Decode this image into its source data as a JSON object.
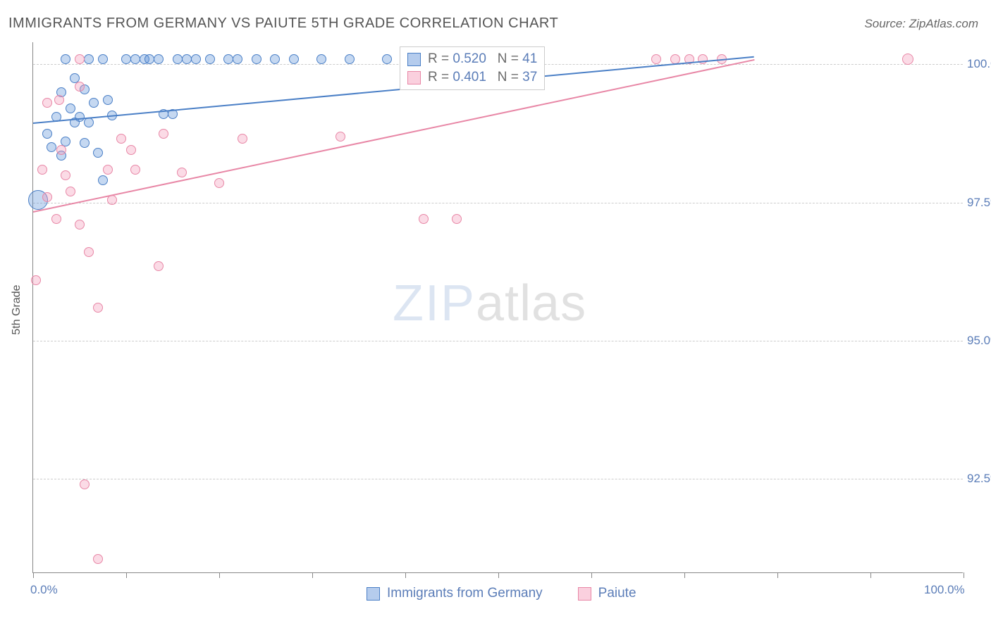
{
  "title": "IMMIGRANTS FROM GERMANY VS PAIUTE 5TH GRADE CORRELATION CHART",
  "source": "Source: ZipAtlas.com",
  "ylabel": "5th Grade",
  "watermark": {
    "part1": "ZIP",
    "part2": "atlas"
  },
  "chart": {
    "type": "scatter",
    "background_color": "#ffffff",
    "grid_color": "#cccccc",
    "axis_color": "#888888",
    "text_color": "#555555",
    "tick_label_color": "#5b7db8",
    "title_fontsize": 20,
    "tick_fontsize": 17,
    "ylabel_fontsize": 16,
    "legend_fontsize": 19,
    "xlim": [
      0,
      100
    ],
    "ylim": [
      90.8,
      100.4
    ],
    "y_gridlines": [
      92.5,
      95.0,
      97.5,
      100.0
    ],
    "y_tick_labels": [
      "92.5%",
      "95.0%",
      "97.5%",
      "100.0%"
    ],
    "x_tick_positions": [
      0,
      10,
      20,
      30,
      40,
      50,
      60,
      70,
      80,
      90,
      100
    ],
    "x_tick_labels": {
      "0": "0.0%",
      "100": "100.0%"
    },
    "point_border_width": 1.5,
    "point_fill_opacity": 0.35
  },
  "series": [
    {
      "id": "germany",
      "label": "Immigrants from Germany",
      "color": "#5a8fd6",
      "border_color": "#4a7fc6",
      "R": "0.520",
      "N": "41",
      "trend": {
        "x1": 0,
        "y1": 98.95,
        "x2": 77.5,
        "y2": 100.15
      },
      "points": [
        {
          "x": 0.5,
          "y": 97.55,
          "r": 14
        },
        {
          "x": 1.5,
          "y": 98.75,
          "r": 7
        },
        {
          "x": 2.0,
          "y": 98.5,
          "r": 7
        },
        {
          "x": 2.5,
          "y": 99.05,
          "r": 7
        },
        {
          "x": 3.0,
          "y": 98.35,
          "r": 7
        },
        {
          "x": 3.5,
          "y": 98.6,
          "r": 7
        },
        {
          "x": 3.5,
          "y": 100.1,
          "r": 7
        },
        {
          "x": 4.0,
          "y": 99.2,
          "r": 7
        },
        {
          "x": 4.5,
          "y": 98.95,
          "r": 7
        },
        {
          "x": 5.0,
          "y": 99.05,
          "r": 7
        },
        {
          "x": 5.5,
          "y": 98.58,
          "r": 7
        },
        {
          "x": 6.0,
          "y": 98.95,
          "r": 7
        },
        {
          "x": 6.5,
          "y": 99.3,
          "r": 7
        },
        {
          "x": 7.0,
          "y": 98.4,
          "r": 7
        },
        {
          "x": 7.5,
          "y": 100.1,
          "r": 7
        },
        {
          "x": 8.0,
          "y": 99.35,
          "r": 7
        },
        {
          "x": 8.5,
          "y": 99.07,
          "r": 7
        },
        {
          "x": 7.5,
          "y": 97.9,
          "r": 7
        },
        {
          "x": 10.0,
          "y": 100.1,
          "r": 7
        },
        {
          "x": 11.0,
          "y": 100.1,
          "r": 7
        },
        {
          "x": 12.0,
          "y": 100.1,
          "r": 7
        },
        {
          "x": 12.5,
          "y": 100.1,
          "r": 7
        },
        {
          "x": 13.5,
          "y": 100.1,
          "r": 7
        },
        {
          "x": 14.0,
          "y": 99.1,
          "r": 7
        },
        {
          "x": 15.0,
          "y": 99.1,
          "r": 7
        },
        {
          "x": 15.5,
          "y": 100.1,
          "r": 7
        },
        {
          "x": 16.5,
          "y": 100.1,
          "r": 7
        },
        {
          "x": 17.5,
          "y": 100.1,
          "r": 7
        },
        {
          "x": 19.0,
          "y": 100.1,
          "r": 7
        },
        {
          "x": 21.0,
          "y": 100.1,
          "r": 7
        },
        {
          "x": 22.0,
          "y": 100.1,
          "r": 7
        },
        {
          "x": 24.0,
          "y": 100.1,
          "r": 7
        },
        {
          "x": 26.0,
          "y": 100.1,
          "r": 7
        },
        {
          "x": 28.0,
          "y": 100.1,
          "r": 7
        },
        {
          "x": 31.0,
          "y": 100.1,
          "r": 7
        },
        {
          "x": 34.0,
          "y": 100.1,
          "r": 7
        },
        {
          "x": 38.0,
          "y": 100.1,
          "r": 7
        },
        {
          "x": 6.0,
          "y": 100.1,
          "r": 7
        },
        {
          "x": 3.0,
          "y": 99.5,
          "r": 7
        },
        {
          "x": 4.5,
          "y": 99.75,
          "r": 7
        },
        {
          "x": 5.5,
          "y": 99.55,
          "r": 7
        }
      ]
    },
    {
      "id": "paiute",
      "label": "Paiute",
      "color": "#f497b6",
      "border_color": "#e887a6",
      "R": "0.401",
      "N": "37",
      "trend": {
        "x1": 0,
        "y1": 97.35,
        "x2": 77.5,
        "y2": 100.1
      },
      "points": [
        {
          "x": 0.3,
          "y": 96.1,
          "r": 7
        },
        {
          "x": 1.0,
          "y": 98.1,
          "r": 7
        },
        {
          "x": 1.5,
          "y": 97.6,
          "r": 7
        },
        {
          "x": 1.5,
          "y": 99.3,
          "r": 7
        },
        {
          "x": 2.5,
          "y": 97.2,
          "r": 7
        },
        {
          "x": 2.8,
          "y": 99.35,
          "r": 7
        },
        {
          "x": 3.0,
          "y": 98.45,
          "r": 7
        },
        {
          "x": 4.0,
          "y": 97.7,
          "r": 7
        },
        {
          "x": 5.0,
          "y": 100.1,
          "r": 7
        },
        {
          "x": 5.0,
          "y": 97.1,
          "r": 7
        },
        {
          "x": 5.5,
          "y": 92.4,
          "r": 7
        },
        {
          "x": 6.0,
          "y": 96.6,
          "r": 7
        },
        {
          "x": 7.0,
          "y": 95.6,
          "r": 7
        },
        {
          "x": 7.0,
          "y": 91.05,
          "r": 7
        },
        {
          "x": 8.0,
          "y": 98.1,
          "r": 7
        },
        {
          "x": 8.5,
          "y": 97.55,
          "r": 7
        },
        {
          "x": 9.5,
          "y": 98.65,
          "r": 7
        },
        {
          "x": 10.5,
          "y": 98.45,
          "r": 7
        },
        {
          "x": 11.0,
          "y": 98.1,
          "r": 7
        },
        {
          "x": 13.5,
          "y": 96.35,
          "r": 7
        },
        {
          "x": 14.0,
          "y": 98.75,
          "r": 7
        },
        {
          "x": 16.0,
          "y": 98.05,
          "r": 7
        },
        {
          "x": 20.0,
          "y": 97.85,
          "r": 7
        },
        {
          "x": 22.5,
          "y": 98.65,
          "r": 7
        },
        {
          "x": 33.0,
          "y": 98.7,
          "r": 7
        },
        {
          "x": 40.0,
          "y": 100.1,
          "r": 7
        },
        {
          "x": 42.0,
          "y": 97.2,
          "r": 7
        },
        {
          "x": 44.5,
          "y": 100.1,
          "r": 7
        },
        {
          "x": 45.5,
          "y": 97.2,
          "r": 7
        },
        {
          "x": 67.0,
          "y": 100.1,
          "r": 7
        },
        {
          "x": 69.0,
          "y": 100.1,
          "r": 7
        },
        {
          "x": 70.5,
          "y": 100.1,
          "r": 7
        },
        {
          "x": 72.0,
          "y": 100.1,
          "r": 7
        },
        {
          "x": 74.0,
          "y": 100.1,
          "r": 7
        },
        {
          "x": 94.0,
          "y": 100.1,
          "r": 8
        },
        {
          "x": 5.0,
          "y": 99.6,
          "r": 7
        },
        {
          "x": 3.5,
          "y": 98.0,
          "r": 7
        }
      ]
    }
  ],
  "stats_legend": {
    "r_label": "R =",
    "n_label": "N ="
  }
}
